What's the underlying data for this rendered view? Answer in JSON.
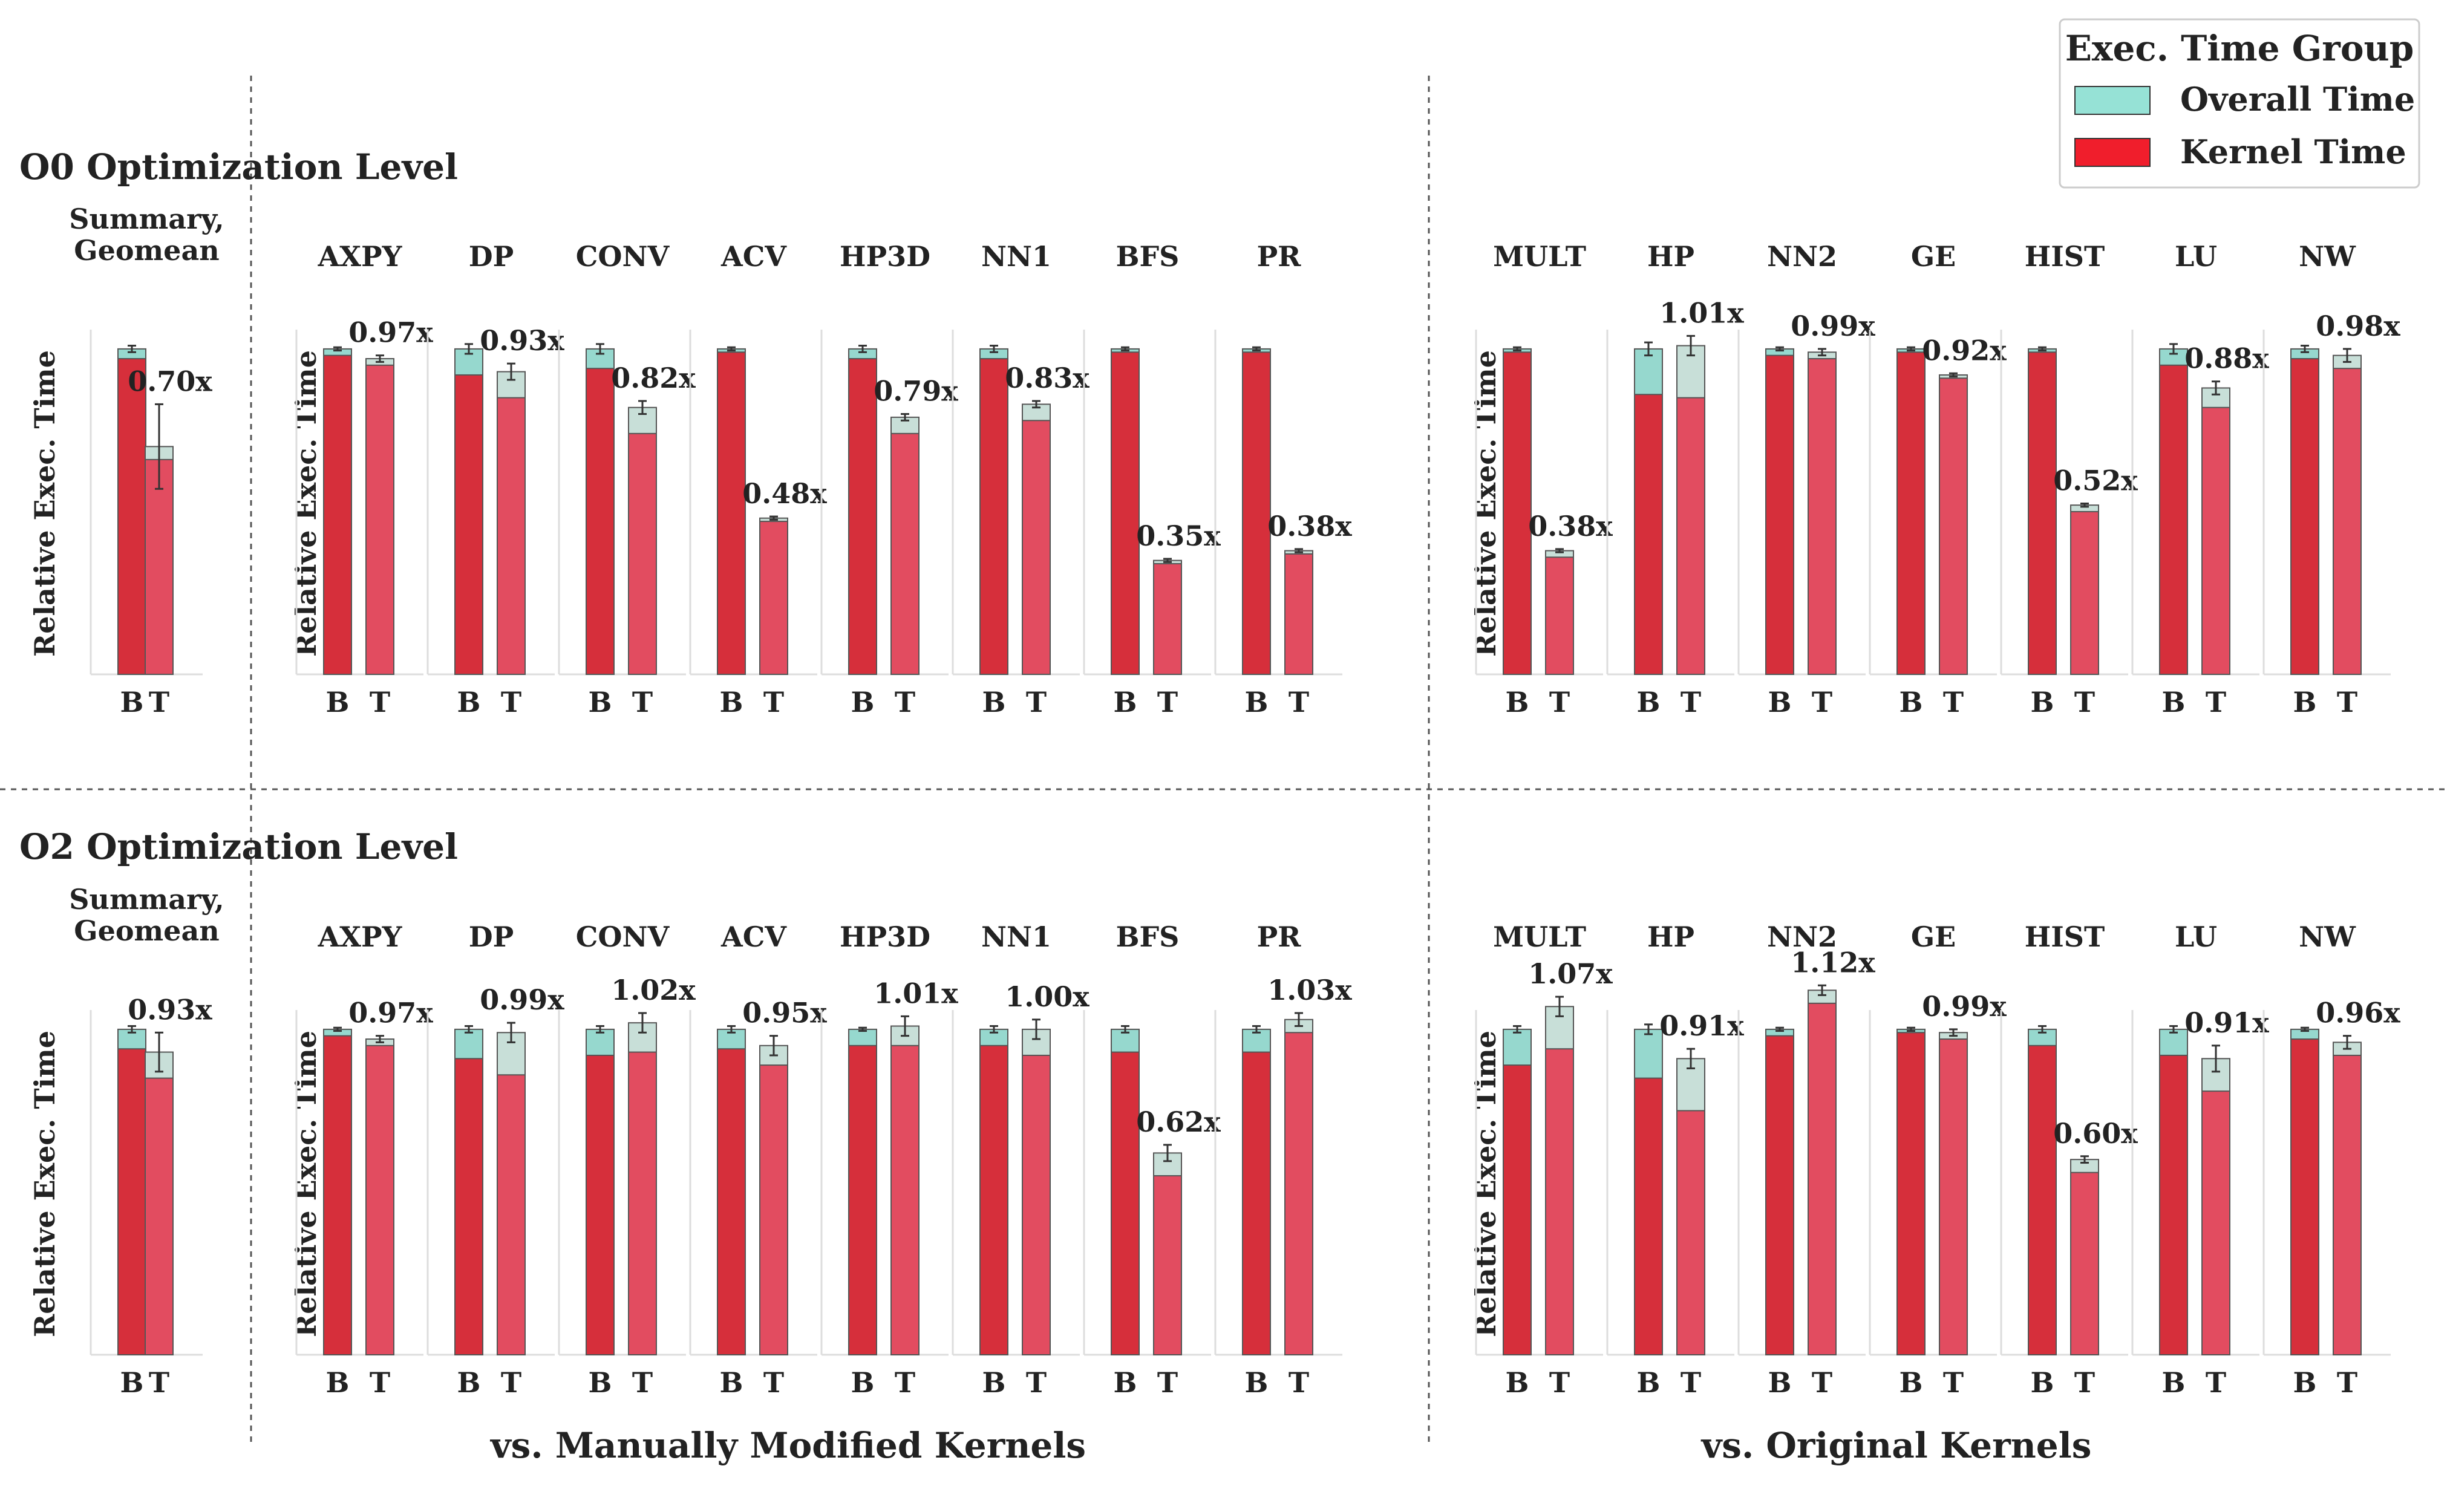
{
  "legend": {
    "title": "Exec. Time Group",
    "items": [
      {
        "label": "Overall Time",
        "color": "#96E2D6"
      },
      {
        "label": "Kernel Time",
        "color": "#F01E2C"
      }
    ],
    "position": "top-right"
  },
  "bottom_labels": [
    "vs. Manually Modified Kernels",
    "vs. Original Kernels"
  ],
  "bar_labels": [
    "B",
    "T"
  ],
  "colors": {
    "base_kernel": "#D62F3B",
    "trans_kernel": "#E24C60",
    "base_overall": "#96D8CE",
    "trans_overall": "#C8DFD8"
  },
  "chart_data": [
    {
      "type": "bar",
      "stacked": true,
      "title": "O0 Optimization Level",
      "ylabel": "Relative Exec. Time",
      "ylim": [
        0,
        1.05
      ],
      "categories": [
        "B",
        "T"
      ],
      "panels": [
        {
          "name": "Summary,\nGeomean",
          "group": "summary",
          "overall": [
            1.0,
            0.7
          ],
          "kernel": [
            0.97,
            0.66
          ],
          "err": [
            0.01,
            0.13
          ],
          "label": "0.70x"
        },
        {
          "name": "AXPY",
          "group": "modified",
          "overall": [
            1.0,
            0.97
          ],
          "kernel": [
            0.98,
            0.95
          ],
          "err": [
            0.005,
            0.01
          ],
          "label": "0.97x"
        },
        {
          "name": "DP",
          "group": "modified",
          "overall": [
            1.0,
            0.93
          ],
          "kernel": [
            0.92,
            0.85
          ],
          "err": [
            0.015,
            0.025
          ],
          "label": "0.93x"
        },
        {
          "name": "CONV",
          "group": "modified",
          "overall": [
            1.0,
            0.82
          ],
          "kernel": [
            0.94,
            0.74
          ],
          "err": [
            0.015,
            0.02
          ],
          "label": "0.82x"
        },
        {
          "name": "ACV",
          "group": "modified",
          "overall": [
            1.0,
            0.48
          ],
          "kernel": [
            0.99,
            0.47
          ],
          "err": [
            0.005,
            0.005
          ],
          "label": "0.48x"
        },
        {
          "name": "HP3D",
          "group": "modified",
          "overall": [
            1.0,
            0.79
          ],
          "kernel": [
            0.97,
            0.74
          ],
          "err": [
            0.01,
            0.01
          ],
          "label": "0.79x"
        },
        {
          "name": "NN1",
          "group": "modified",
          "overall": [
            1.0,
            0.83
          ],
          "kernel": [
            0.97,
            0.78
          ],
          "err": [
            0.01,
            0.01
          ],
          "label": "0.83x"
        },
        {
          "name": "BFS",
          "group": "modified",
          "overall": [
            1.0,
            0.35
          ],
          "kernel": [
            0.99,
            0.34
          ],
          "err": [
            0.005,
            0.005
          ],
          "label": "0.35x"
        },
        {
          "name": "PR",
          "group": "modified",
          "overall": [
            1.0,
            0.38
          ],
          "kernel": [
            0.99,
            0.37
          ],
          "err": [
            0.005,
            0.005
          ],
          "label": "0.38x"
        },
        {
          "name": "MULT",
          "group": "original",
          "overall": [
            1.0,
            0.38
          ],
          "kernel": [
            0.99,
            0.36
          ],
          "err": [
            0.005,
            0.005
          ],
          "label": "0.38x"
        },
        {
          "name": "HP",
          "group": "original",
          "overall": [
            1.0,
            1.01
          ],
          "kernel": [
            0.86,
            0.85
          ],
          "err": [
            0.02,
            0.03
          ],
          "label": "1.01x"
        },
        {
          "name": "NN2",
          "group": "original",
          "overall": [
            1.0,
            0.99
          ],
          "kernel": [
            0.98,
            0.97
          ],
          "err": [
            0.005,
            0.01
          ],
          "label": "0.99x"
        },
        {
          "name": "GE",
          "group": "original",
          "overall": [
            1.0,
            0.92
          ],
          "kernel": [
            0.99,
            0.91
          ],
          "err": [
            0.005,
            0.005
          ],
          "label": "0.92x"
        },
        {
          "name": "HIST",
          "group": "original",
          "overall": [
            1.0,
            0.52
          ],
          "kernel": [
            0.99,
            0.5
          ],
          "err": [
            0.005,
            0.005
          ],
          "label": "0.52x"
        },
        {
          "name": "LU",
          "group": "original",
          "overall": [
            1.0,
            0.88
          ],
          "kernel": [
            0.95,
            0.82
          ],
          "err": [
            0.015,
            0.02
          ],
          "label": "0.88x"
        },
        {
          "name": "NW",
          "group": "original",
          "overall": [
            1.0,
            0.98
          ],
          "kernel": [
            0.97,
            0.94
          ],
          "err": [
            0.01,
            0.02
          ],
          "label": "0.98x"
        }
      ]
    },
    {
      "type": "bar",
      "stacked": true,
      "title": "O2 Optimization Level",
      "ylabel": "Relative Exec. Time",
      "ylim": [
        0,
        1.05
      ],
      "categories": [
        "B",
        "T"
      ],
      "panels": [
        {
          "name": "Summary,\nGeomean",
          "group": "summary",
          "overall": [
            1.0,
            0.93
          ],
          "kernel": [
            0.94,
            0.85
          ],
          "err": [
            0.01,
            0.06
          ],
          "label": "0.93x"
        },
        {
          "name": "AXPY",
          "group": "modified",
          "overall": [
            1.0,
            0.97
          ],
          "kernel": [
            0.98,
            0.95
          ],
          "err": [
            0.005,
            0.01
          ],
          "label": "0.97x"
        },
        {
          "name": "DP",
          "group": "modified",
          "overall": [
            1.0,
            0.99
          ],
          "kernel": [
            0.91,
            0.86
          ],
          "err": [
            0.01,
            0.03
          ],
          "label": "0.99x"
        },
        {
          "name": "CONV",
          "group": "modified",
          "overall": [
            1.0,
            1.02
          ],
          "kernel": [
            0.92,
            0.93
          ],
          "err": [
            0.01,
            0.03
          ],
          "label": "1.02x"
        },
        {
          "name": "ACV",
          "group": "modified",
          "overall": [
            1.0,
            0.95
          ],
          "kernel": [
            0.94,
            0.89
          ],
          "err": [
            0.01,
            0.03
          ],
          "label": "0.95x"
        },
        {
          "name": "HP3D",
          "group": "modified",
          "overall": [
            1.0,
            1.01
          ],
          "kernel": [
            0.95,
            0.95
          ],
          "err": [
            0.005,
            0.03
          ],
          "label": "1.01x"
        },
        {
          "name": "NN1",
          "group": "modified",
          "overall": [
            1.0,
            1.0
          ],
          "kernel": [
            0.95,
            0.92
          ],
          "err": [
            0.01,
            0.03
          ],
          "label": "1.00x"
        },
        {
          "name": "BFS",
          "group": "modified",
          "overall": [
            1.0,
            0.62
          ],
          "kernel": [
            0.93,
            0.55
          ],
          "err": [
            0.01,
            0.025
          ],
          "label": "0.62x"
        },
        {
          "name": "PR",
          "group": "modified",
          "overall": [
            1.0,
            1.03
          ],
          "kernel": [
            0.93,
            0.99
          ],
          "err": [
            0.01,
            0.02
          ],
          "label": "1.03x"
        },
        {
          "name": "MULT",
          "group": "original",
          "overall": [
            1.0,
            1.07
          ],
          "kernel": [
            0.89,
            0.94
          ],
          "err": [
            0.01,
            0.03
          ],
          "label": "1.07x"
        },
        {
          "name": "HP",
          "group": "original",
          "overall": [
            1.0,
            0.91
          ],
          "kernel": [
            0.85,
            0.75
          ],
          "err": [
            0.015,
            0.03
          ],
          "label": "0.91x"
        },
        {
          "name": "NN2",
          "group": "original",
          "overall": [
            1.0,
            1.12
          ],
          "kernel": [
            0.98,
            1.08
          ],
          "err": [
            0.005,
            0.015
          ],
          "label": "1.12x"
        },
        {
          "name": "GE",
          "group": "original",
          "overall": [
            1.0,
            0.99
          ],
          "kernel": [
            0.99,
            0.97
          ],
          "err": [
            0.005,
            0.01
          ],
          "label": "0.99x"
        },
        {
          "name": "HIST",
          "group": "original",
          "overall": [
            1.0,
            0.6
          ],
          "kernel": [
            0.95,
            0.56
          ],
          "err": [
            0.01,
            0.01
          ],
          "label": "0.60x"
        },
        {
          "name": "LU",
          "group": "original",
          "overall": [
            1.0,
            0.91
          ],
          "kernel": [
            0.92,
            0.81
          ],
          "err": [
            0.01,
            0.04
          ],
          "label": "0.91x"
        },
        {
          "name": "NW",
          "group": "original",
          "overall": [
            1.0,
            0.96
          ],
          "kernel": [
            0.97,
            0.92
          ],
          "err": [
            0.005,
            0.02
          ],
          "label": "0.96x"
        }
      ]
    }
  ]
}
